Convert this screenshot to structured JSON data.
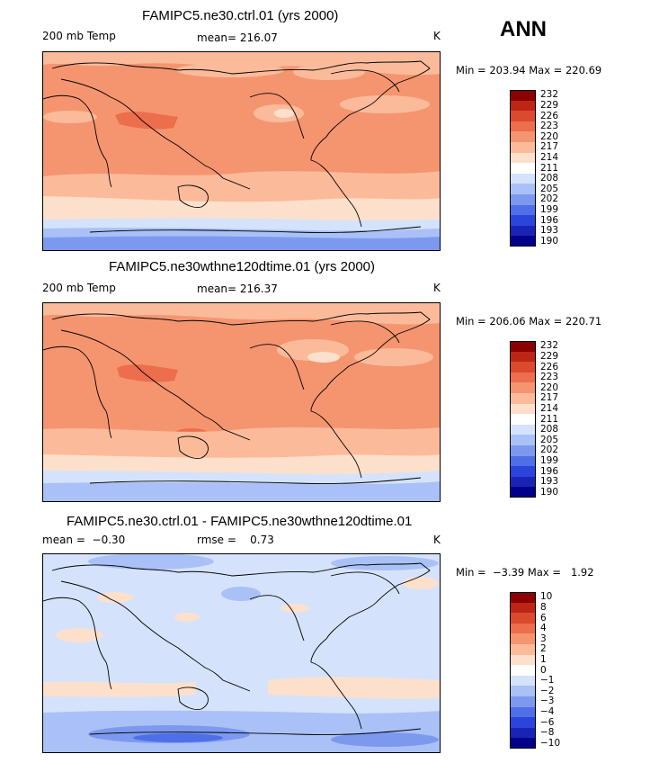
{
  "season": "ANN",
  "palette": {
    "temp": [
      "#00008b",
      "#1a24b4",
      "#2a44dc",
      "#4f6fe8",
      "#7d99ef",
      "#a9c1f6",
      "#d4e3fb",
      "#ffffff",
      "#fde0cc",
      "#fbbb9b",
      "#f59570",
      "#ec6e4c",
      "#dc4a2d",
      "#bd2514",
      "#8b0000"
    ],
    "diff": [
      "#00008b",
      "#1a24b4",
      "#2a44dc",
      "#4f6fe8",
      "#7d99ef",
      "#a9c1f6",
      "#d4e3fb",
      "#ffffff",
      "#fde0cc",
      "#fbbb9b",
      "#f59570",
      "#ec6e4c",
      "#dc4a2d",
      "#bd2514",
      "#8b0000"
    ]
  },
  "panels": [
    {
      "title": "FAMIPC5.ne30.ctrl.01 (yrs 2000)",
      "variable": "200 mb Temp",
      "stat": "mean= 216.07",
      "units": "K",
      "minmax": "Min = 203.94 Max = 220.69",
      "levels": [
        "232",
        "229",
        "226",
        "223",
        "220",
        "217",
        "214",
        "211",
        "208",
        "205",
        "202",
        "199",
        "196",
        "193",
        "190"
      ]
    },
    {
      "title": "FAMIPC5.ne30wthne120dtime.01 (yrs 2000)",
      "variable": "200 mb Temp",
      "stat": "mean= 216.37",
      "units": "K",
      "minmax": "Min = 206.06 Max = 220.71",
      "levels": [
        "232",
        "229",
        "226",
        "223",
        "220",
        "217",
        "214",
        "211",
        "208",
        "205",
        "202",
        "199",
        "196",
        "193",
        "190"
      ]
    },
    {
      "title": "FAMIPC5.ne30.ctrl.01 - FAMIPC5.ne30wthne120dtime.01",
      "stat_left": "mean =  −0.30",
      "stat_mid": "rmse =    0.73",
      "units": "K",
      "minmax": "Min =  −3.39 Max =   1.92",
      "levels": [
        "10",
        "8",
        "6",
        "4",
        "3",
        "2",
        "1",
        "0",
        "−1",
        "−2",
        "−3",
        "−4",
        "−6",
        "−8",
        "−10"
      ]
    }
  ]
}
